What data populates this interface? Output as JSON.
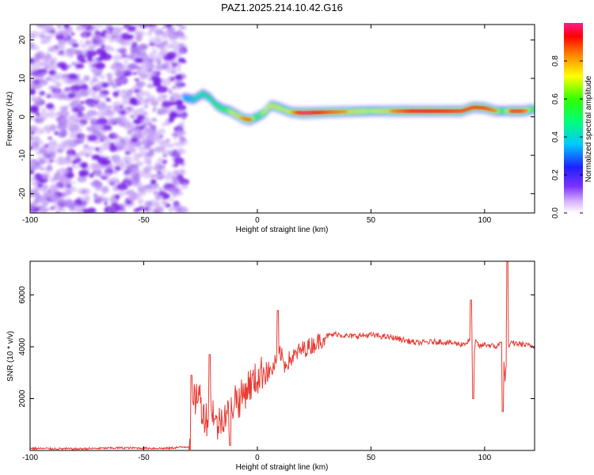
{
  "title": "PAZ1.2025.214.10.42.G16",
  "chart_data": [
    {
      "type": "heatmap",
      "xlabel": "Height of straight line (km)",
      "ylabel": "Frequency (Hz)",
      "xlim": [
        -100,
        122
      ],
      "ylim": [
        -25,
        24
      ],
      "x_ticks": [
        -100,
        -50,
        0,
        50,
        100
      ],
      "y_ticks": [
        -20,
        -10,
        0,
        10,
        20
      ],
      "colorbar": {
        "label": "Normalized spectral amplitude",
        "range": [
          0,
          1
        ],
        "ticks": [
          0.0,
          0.2,
          0.4,
          0.6,
          0.8
        ]
      },
      "noise_region_x": [
        -100,
        -32
      ],
      "ridge": {
        "x": [
          -32,
          -28,
          -24,
          -21,
          -18,
          -15,
          -12,
          -9,
          -6,
          -3,
          0,
          3,
          6,
          9,
          12,
          15,
          20,
          30,
          50,
          70,
          90,
          95,
          100,
          105,
          108,
          112,
          117,
          122
        ],
        "freq": [
          5,
          4.5,
          6,
          5,
          3,
          2,
          1.5,
          0.5,
          -0.5,
          -0.8,
          0,
          1,
          3,
          2.5,
          1.8,
          1.2,
          1,
          1.2,
          1.5,
          1.5,
          1.5,
          2.5,
          2.3,
          1.5,
          1.5,
          1.5,
          1.5,
          2
        ],
        "amp": [
          0.4,
          0.45,
          0.5,
          0.5,
          0.55,
          0.6,
          0.7,
          0.75,
          0.8,
          0.82,
          0.6,
          0.7,
          0.75,
          0.75,
          0.7,
          0.75,
          0.95,
          0.85,
          0.7,
          0.9,
          0.85,
          0.85,
          0.85,
          0.8,
          0.6,
          0.85,
          0.85,
          0.6
        ]
      }
    },
    {
      "type": "line",
      "xlabel": "Height of straight line (km)",
      "ylabel": "SNR (10 * v/v)",
      "xlim": [
        -100,
        122
      ],
      "ylim": [
        0,
        7300
      ],
      "x_ticks": [
        -100,
        -50,
        0,
        50,
        100
      ],
      "y_ticks": [
        2000,
        4000,
        6000
      ],
      "color": "#e83a32",
      "series": [
        {
          "x": [
            -100,
            -80,
            -60,
            -40,
            -30,
            -28,
            -26,
            -24,
            -22,
            -20,
            -18,
            -16,
            -14,
            -12,
            -10,
            -8,
            -6,
            -4,
            -2,
            0,
            2,
            4,
            6,
            8,
            10,
            12,
            14,
            16,
            18,
            20,
            25,
            30,
            35,
            40,
            50,
            60,
            70,
            80,
            90,
            92,
            94,
            95,
            96,
            98,
            100,
            105,
            108,
            109,
            110,
            111,
            112,
            116,
            122
          ],
          "y": [
            80,
            60,
            100,
            80,
            150,
            1800,
            2300,
            1500,
            1200,
            1800,
            900,
            1200,
            1500,
            1300,
            2100,
            1900,
            2200,
            2500,
            2600,
            2800,
            3000,
            3200,
            3000,
            3400,
            3800,
            3300,
            3500,
            3600,
            3800,
            3900,
            4100,
            4400,
            4500,
            4400,
            4450,
            4350,
            4150,
            4200,
            4100,
            4150,
            4300,
            3300,
            4200,
            4000,
            4100,
            4000,
            4200,
            2600,
            4100,
            4000,
            4150,
            4100,
            4000
          ]
        }
      ],
      "spikes": [
        {
          "x": -29,
          "y": 2900
        },
        {
          "x": -21,
          "y": 3700
        },
        {
          "x": -12,
          "y": 200
        },
        {
          "x": 9,
          "y": 5400
        },
        {
          "x": 94,
          "y": 5800
        },
        {
          "x": 95,
          "y": 2000
        },
        {
          "x": 108,
          "y": 1500
        },
        {
          "x": 110,
          "y": 7300
        }
      ]
    }
  ]
}
